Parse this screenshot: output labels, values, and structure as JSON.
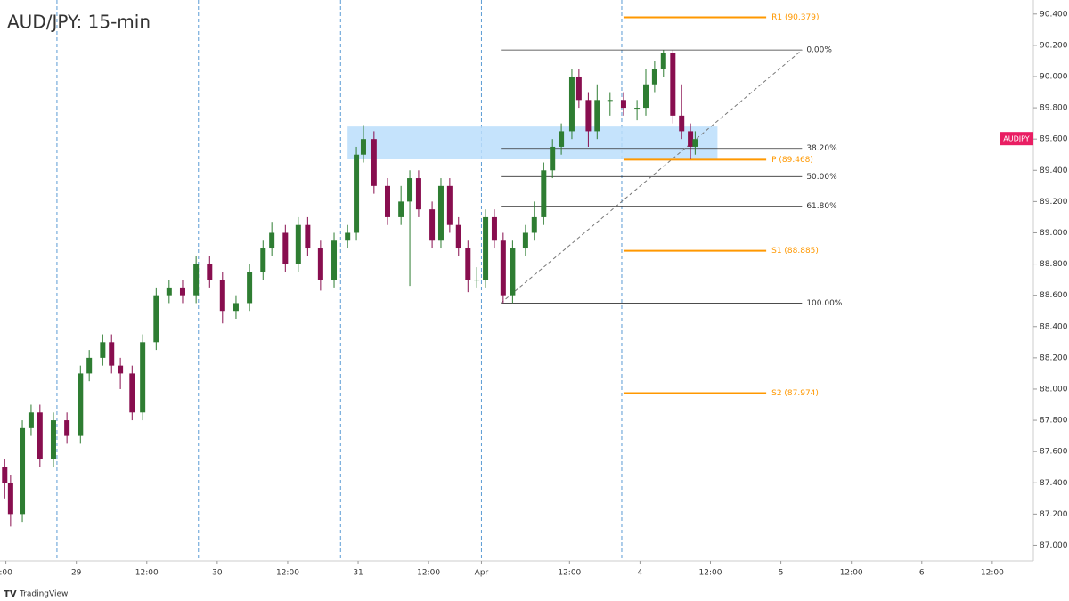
{
  "chart_data": {
    "type": "candlestick",
    "title": "AUD/JPY: 15-min",
    "symbol": "AUDJPY",
    "symbol_color": "#e91e63",
    "up_color": "#2e7d32",
    "down_color": "#880e4f",
    "x": [
      -0.2,
      0.8,
      2.8,
      4.3,
      5.8,
      8.1,
      10.4,
      12.7,
      14.2,
      16.5,
      18.0,
      19.5,
      21.5,
      23.3,
      25.6,
      27.8,
      30.1,
      32.4,
      34.7,
      36.9,
      39.2,
      41.5,
      43.8,
      45.3,
      47.6,
      49.8,
      51.4,
      53.6,
      55.9,
      58.2,
      59.7,
      60.9,
      62.7,
      65.0,
      67.3,
      68.8,
      70.3,
      72.6,
      74.1,
      75.6,
      77.1,
      78.7,
      80.2,
      81.7,
      83.2,
      84.7,
      86.3,
      88.5,
      90.0,
      91.6,
      93.1,
      94.6,
      96.4,
      97.6,
      99.2,
      100.7,
      102.9,
      105.2,
      107.5,
      109.0,
      110.5,
      112.0,
      113.6,
      115.1,
      116.6,
      117.4
    ],
    "open": [
      87.5,
      87.4,
      87.2,
      87.75,
      87.85,
      87.55,
      87.8,
      87.7,
      88.1,
      88.2,
      88.3,
      88.15,
      88.1,
      87.85,
      88.3,
      88.6,
      88.65,
      88.6,
      88.8,
      88.7,
      88.5,
      88.55,
      88.75,
      88.9,
      89.0,
      88.8,
      89.05,
      88.9,
      88.7,
      88.95,
      89.0,
      89.5,
      89.6,
      89.3,
      89.1,
      89.2,
      89.35,
      89.15,
      88.95,
      89.3,
      89.05,
      88.9,
      88.7,
      88.7,
      89.1,
      88.95,
      88.6,
      88.9,
      89.0,
      89.1,
      89.4,
      89.55,
      89.65,
      90.0,
      89.85,
      89.65,
      89.85,
      89.85,
      89.8,
      89.8,
      89.95,
      90.05,
      90.15,
      89.75,
      89.65,
      89.55
    ],
    "high": [
      87.55,
      87.45,
      87.8,
      87.9,
      87.9,
      87.85,
      87.85,
      88.15,
      88.25,
      88.35,
      88.35,
      88.2,
      88.15,
      88.35,
      88.65,
      88.7,
      88.7,
      88.85,
      88.85,
      88.75,
      88.6,
      88.8,
      88.95,
      89.07,
      89.05,
      89.1,
      89.1,
      88.95,
      89.0,
      89.05,
      89.55,
      89.69,
      89.65,
      89.35,
      89.3,
      89.4,
      89.4,
      89.2,
      89.35,
      89.35,
      89.1,
      88.95,
      88.78,
      89.15,
      89.15,
      89.0,
      88.95,
      89.05,
      89.2,
      89.45,
      89.6,
      89.7,
      90.05,
      90.05,
      89.9,
      89.95,
      89.9,
      89.9,
      89.85,
      90.05,
      90.1,
      90.17,
      90.17,
      89.95,
      89.7,
      89.65
    ],
    "low": [
      87.3,
      87.12,
      87.15,
      87.7,
      87.5,
      87.5,
      87.65,
      87.65,
      88.05,
      88.15,
      88.1,
      88.0,
      87.8,
      87.8,
      88.25,
      88.55,
      88.55,
      88.55,
      88.65,
      88.42,
      88.45,
      88.5,
      88.7,
      88.85,
      88.75,
      88.75,
      88.85,
      88.63,
      88.65,
      88.9,
      88.95,
      89.45,
      89.25,
      89.05,
      89.05,
      88.66,
      89.1,
      88.9,
      88.9,
      89.0,
      88.85,
      88.62,
      88.65,
      88.65,
      88.9,
      88.55,
      88.55,
      88.85,
      88.95,
      89.05,
      89.35,
      89.5,
      89.6,
      89.8,
      89.55,
      89.6,
      89.75,
      89.75,
      89.72,
      89.75,
      89.9,
      90.0,
      89.7,
      89.6,
      89.47,
      89.5
    ],
    "close": [
      87.4,
      87.2,
      87.75,
      87.85,
      87.55,
      87.8,
      87.7,
      88.1,
      88.2,
      88.3,
      88.15,
      88.1,
      87.85,
      88.3,
      88.6,
      88.65,
      88.6,
      88.8,
      88.7,
      88.5,
      88.55,
      88.75,
      88.9,
      89.0,
      88.8,
      89.05,
      88.9,
      88.7,
      88.95,
      89.0,
      89.5,
      89.6,
      89.3,
      89.1,
      89.2,
      89.35,
      89.15,
      88.95,
      89.3,
      89.05,
      88.9,
      88.7,
      88.7,
      89.1,
      88.95,
      88.6,
      88.9,
      89.0,
      89.1,
      89.4,
      89.55,
      89.65,
      90.0,
      89.85,
      89.65,
      89.85,
      89.85,
      89.8,
      89.8,
      89.95,
      90.05,
      90.15,
      89.75,
      89.65,
      89.55,
      89.6
    ],
    "xlim": [
      -1,
      175
    ],
    "ylim": [
      86.9,
      90.49
    ],
    "xticks": [
      {
        "value": 0,
        "label": ":00"
      },
      {
        "value": 12,
        "label": "29"
      },
      {
        "value": 24,
        "label": "12:00"
      },
      {
        "value": 36,
        "label": "30"
      },
      {
        "value": 48,
        "label": "12:00"
      },
      {
        "value": 60,
        "label": "31"
      },
      {
        "value": 72,
        "label": "12:00"
      },
      {
        "value": 81,
        "label": "Apr"
      },
      {
        "value": 96,
        "label": "12:00"
      },
      {
        "value": 108,
        "label": "4"
      },
      {
        "value": 120,
        "label": "12:00"
      },
      {
        "value": 132,
        "label": "5"
      },
      {
        "value": 144,
        "label": "12:00"
      },
      {
        "value": 156,
        "label": "6"
      },
      {
        "value": 168,
        "label": "12:00"
      }
    ],
    "yticks": [
      {
        "value": 87,
        "label": "87.000"
      },
      {
        "value": 87.2,
        "label": "87.200"
      },
      {
        "value": 87.4,
        "label": "87.400"
      },
      {
        "value": 87.6,
        "label": "87.600"
      },
      {
        "value": 87.8,
        "label": "87.800"
      },
      {
        "value": 88,
        "label": "88.000"
      },
      {
        "value": 88.2,
        "label": "88.200"
      },
      {
        "value": 88.4,
        "label": "88.400"
      },
      {
        "value": 88.6,
        "label": "88.600"
      },
      {
        "value": 88.8,
        "label": "88.800"
      },
      {
        "value": 89,
        "label": "89.000"
      },
      {
        "value": 89.2,
        "label": "89.200"
      },
      {
        "value": 89.4,
        "label": "89.400"
      },
      {
        "value": 89.6,
        "label": "89.600"
      },
      {
        "value": 89.8,
        "label": "89.800"
      },
      {
        "value": 90,
        "label": "90.000"
      },
      {
        "value": 90.2,
        "label": "90.200"
      },
      {
        "value": 90.4,
        "label": "90.400"
      }
    ],
    "session_breaks": [
      8.7,
      32.8,
      57.0,
      81.0,
      104.9
    ],
    "zone": {
      "x": [
        58.2,
        121.2
      ],
      "y": [
        89.47,
        89.68
      ],
      "color": "#bbdefb"
    },
    "pivot_color": "#ff9800",
    "pivots": [
      {
        "label": "R1 (90.379)",
        "value": 90.379,
        "x": [
          105.2,
          129.5
        ]
      },
      {
        "label": "P (89.468)",
        "value": 89.468,
        "x": [
          105.2,
          129.5
        ]
      },
      {
        "label": "S1 (88.885)",
        "value": 88.885,
        "x": [
          105.2,
          129.5
        ]
      },
      {
        "label": "S2 (87.974)",
        "value": 87.974,
        "x": [
          105.2,
          129.5
        ]
      }
    ],
    "fib": {
      "x": [
        84.3,
        135.6
      ],
      "color": "#333333",
      "levels": [
        {
          "label": "0.00%",
          "value": 90.17
        },
        {
          "label": "38.20%",
          "value": 89.54
        },
        {
          "label": "50.00%",
          "value": 89.36
        },
        {
          "label": "61.80%",
          "value": 89.17
        },
        {
          "label": "100.00%",
          "value": 88.55
        }
      ]
    },
    "trendline": {
      "x": [
        84.3,
        135.6
      ],
      "y": [
        88.55,
        90.17
      ]
    }
  },
  "footer": "TradingView"
}
